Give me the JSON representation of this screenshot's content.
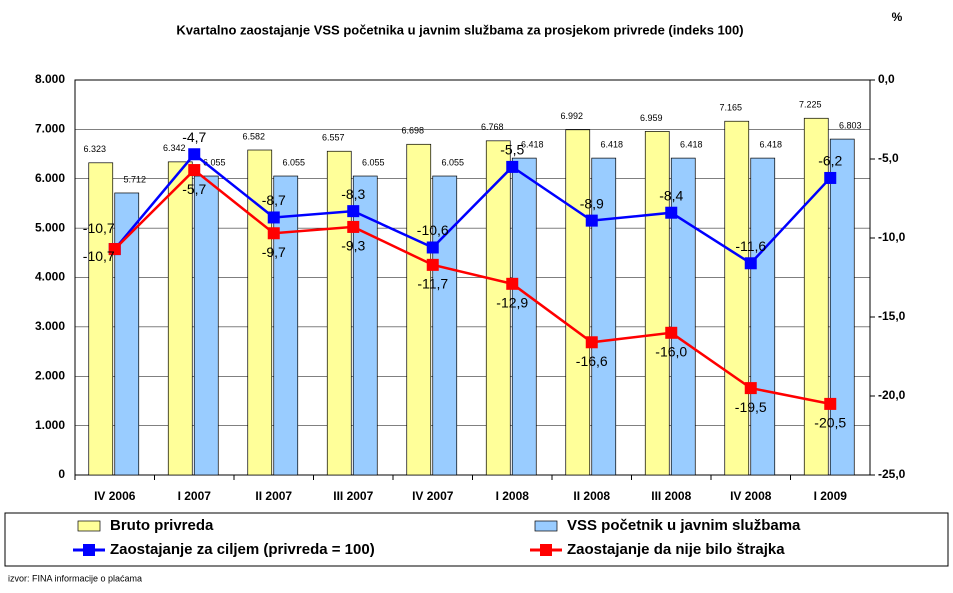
{
  "chart_data": {
    "type": "bar_line",
    "title": "Kvartalno zaostajanje VSS početnika u javnim službama za prosjekom privrede (indeks 100)",
    "y2_label": "%",
    "source": "izvor: FINA informacije o plaćama",
    "categories": [
      "IV 2006",
      "I 2007",
      "II 2007",
      "III 2007",
      "IV 2007",
      "I 2008",
      "II 2008",
      "III 2008",
      "IV 2008",
      "I 2009"
    ],
    "series": [
      {
        "name": "Bruto privreda",
        "color": "#ffff99",
        "kind": "bar",
        "values": [
          6323,
          6342,
          6582,
          6557,
          6698,
          6768,
          6992,
          6959,
          7165,
          7225
        ],
        "value_labels": [
          "6.323",
          "6.342",
          "6.582",
          "6.557",
          "6.698",
          "6.768",
          "6.992",
          "6.959",
          "7.165",
          "7.225"
        ]
      },
      {
        "name": "VSS početnik u javnim službama",
        "color": "#99ccff",
        "kind": "bar",
        "values": [
          5712,
          6055,
          6055,
          6055,
          6055,
          6418,
          6418,
          6418,
          6418,
          6803
        ],
        "value_labels": [
          "5.712",
          "6.055",
          "6.055",
          "6.055",
          "6.055",
          "6.418",
          "6.418",
          "6.418",
          "6.418",
          "6.803"
        ]
      },
      {
        "name": "Zaostajanje za ciljem (privreda = 100)",
        "color": "#0000ff",
        "kind": "line",
        "axis": "y2",
        "values": [
          -10.7,
          -4.7,
          -8.7,
          -8.3,
          -10.6,
          -5.5,
          -8.9,
          -8.4,
          -11.6,
          -6.2
        ],
        "value_labels": [
          "-10,7",
          "-4,7",
          "-8,7",
          "-8,3",
          "-10,6",
          "-5,5",
          "-8,9",
          "-8,4",
          "-11,6",
          "-6,2"
        ]
      },
      {
        "name": "Zaostajanje da nije bilo štrajka",
        "color": "#ff0000",
        "kind": "line",
        "axis": "y2",
        "values": [
          -10.7,
          -5.7,
          -9.7,
          -9.3,
          -11.7,
          -12.9,
          -16.6,
          -16.0,
          -19.5,
          -20.5
        ],
        "value_labels": [
          "-10,7",
          "-5,7",
          "-9,7",
          "-9,3",
          "-11,7",
          "-12,9",
          "-16,6",
          "-16,0",
          "-19,5",
          "-20,5"
        ]
      }
    ],
    "ylim": [
      0,
      8000
    ],
    "yticks": [
      0,
      {
        "value": 1000,
        "label": "1.000"
      },
      {
        "value": 2000,
        "label": "2.000"
      },
      {
        "value": 3000,
        "label": "3.000"
      },
      {
        "value": 4000,
        "label": "4.000"
      },
      {
        "value": 5000,
        "label": "5.000"
      },
      {
        "value": 6000,
        "label": "6.000"
      },
      {
        "value": 7000,
        "label": "7.000"
      },
      {
        "value": 8000,
        "label": "8.000"
      }
    ],
    "y2lim": [
      -25,
      0
    ],
    "y2ticks": [
      {
        "value": -25,
        "label": "-25,0"
      },
      {
        "value": -20,
        "label": "-20,0"
      },
      {
        "value": -15,
        "label": "-15,0"
      },
      {
        "value": -10,
        "label": "-10,0"
      },
      {
        "value": -5,
        "label": "-5,0"
      },
      {
        "value": 0,
        "label": "0,0"
      }
    ],
    "grid": true
  }
}
